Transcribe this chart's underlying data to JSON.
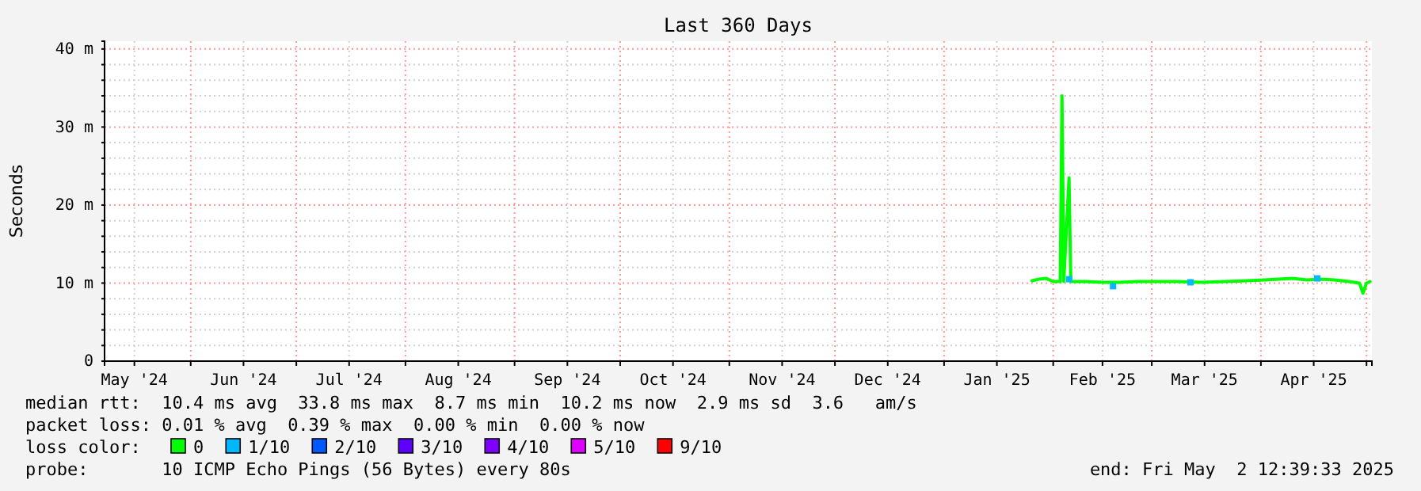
{
  "chart_data": {
    "type": "line",
    "title": "Last 360 Days",
    "ylabel": "Seconds",
    "xlim": [
      "2024-05-07T12:39",
      "2025-05-02T12:39"
    ],
    "xticks": [
      {
        "value": "2024-05-16",
        "label": "May '24"
      },
      {
        "value": "2024-06-01",
        "label": null
      },
      {
        "value": "2024-06-16",
        "label": "Jun '24"
      },
      {
        "value": "2024-07-01",
        "label": null
      },
      {
        "value": "2024-07-16",
        "label": "Jul '24"
      },
      {
        "value": "2024-08-01",
        "label": null
      },
      {
        "value": "2024-08-16",
        "label": "Aug '24"
      },
      {
        "value": "2024-09-01",
        "label": null
      },
      {
        "value": "2024-09-16",
        "label": "Sep '24"
      },
      {
        "value": "2024-10-01",
        "label": null
      },
      {
        "value": "2024-10-16",
        "label": "Oct '24"
      },
      {
        "value": "2024-11-01",
        "label": null
      },
      {
        "value": "2024-11-16",
        "label": "Nov '24"
      },
      {
        "value": "2024-12-01",
        "label": null
      },
      {
        "value": "2024-12-16",
        "label": "Dec '24"
      },
      {
        "value": "2025-01-01",
        "label": null
      },
      {
        "value": "2025-01-16",
        "label": "Jan '25"
      },
      {
        "value": "2025-02-01",
        "label": null
      },
      {
        "value": "2025-02-15",
        "label": "Feb '25"
      },
      {
        "value": "2025-03-01",
        "label": null
      },
      {
        "value": "2025-03-16",
        "label": "Mar '25"
      },
      {
        "value": "2025-04-01",
        "label": null
      },
      {
        "value": "2025-04-16",
        "label": "Apr '25"
      },
      {
        "value": "2025-05-01",
        "label": null
      }
    ],
    "ylim": [
      0,
      41
    ],
    "yticks": [
      0,
      {
        "value": 2,
        "label": null
      },
      {
        "value": 4,
        "label": null
      },
      {
        "value": 6,
        "label": null
      },
      {
        "value": 8,
        "label": null
      },
      {
        "value": 10,
        "label": "10 m"
      },
      {
        "value": 12,
        "label": null
      },
      {
        "value": 14,
        "label": null
      },
      {
        "value": 16,
        "label": null
      },
      {
        "value": 18,
        "label": null
      },
      {
        "value": 20,
        "label": "20 m"
      },
      {
        "value": 22,
        "label": null
      },
      {
        "value": 24,
        "label": null
      },
      {
        "value": 26,
        "label": null
      },
      {
        "value": 28,
        "label": null
      },
      {
        "value": 30,
        "label": "30 m"
      },
      {
        "value": 32,
        "label": null
      },
      {
        "value": 34,
        "label": null
      },
      {
        "value": 36,
        "label": null
      },
      {
        "value": 38,
        "label": null
      },
      {
        "value": 40,
        "label": "40 m"
      }
    ],
    "grid": true,
    "legend": "bottom",
    "legend_title": "loss color:",
    "series": [
      {
        "name": "0",
        "color": "#00ff00",
        "x": [
          "2025-01-26",
          "2025-01-28",
          "2025-01-30",
          "2025-02-01",
          "2025-02-03T00:00",
          "2025-02-03T12:00",
          "2025-02-04T00:00",
          "2025-02-05T12:00",
          "2025-02-06T00:00",
          "2025-02-06T12:00",
          "2025-02-10",
          "2025-02-15",
          "2025-02-20",
          "2025-02-25",
          "2025-03-01",
          "2025-03-08",
          "2025-03-15",
          "2025-03-22",
          "2025-03-28",
          "2025-04-02",
          "2025-04-06",
          "2025-04-10",
          "2025-04-14",
          "2025-04-18",
          "2025-04-22",
          "2025-04-26",
          "2025-04-29",
          "2025-04-30",
          "2025-05-01",
          "2025-05-02"
        ],
        "values": [
          10.3,
          10.5,
          10.6,
          10.2,
          10.2,
          34.0,
          10.2,
          23.5,
          10.2,
          10.2,
          10.2,
          10.1,
          10.1,
          10.2,
          10.2,
          10.2,
          10.1,
          10.2,
          10.3,
          10.4,
          10.5,
          10.6,
          10.4,
          10.5,
          10.4,
          10.2,
          10.0,
          8.7,
          10.0,
          10.2
        ]
      },
      {
        "name": "1/10",
        "color": "#00b8ff",
        "type": "scatter",
        "x": [
          "2025-02-05T12:00",
          "2025-02-18",
          "2025-03-12",
          "2025-04-17"
        ],
        "values": [
          10.5,
          9.6,
          10.1,
          10.6
        ]
      },
      {
        "name": "2/10",
        "color": "#0059ff",
        "type": "scatter"
      },
      {
        "name": "3/10",
        "color": "#5e00ff",
        "type": "scatter"
      },
      {
        "name": "4/10",
        "color": "#7e00ff",
        "type": "scatter"
      },
      {
        "name": "5/10",
        "color": "#dd00ff",
        "type": "scatter"
      },
      {
        "name": "9/10",
        "color": "#ff0000",
        "type": "scatter"
      }
    ],
    "annotations": [
      "median rtt:  10.4 ms avg  33.8 ms max  8.7 ms min  10.2 ms now  2.9 ms sd  3.6   am/s",
      "packet loss: 0.01 % avg  0.39 % max  0.00 % min  0.00 % now",
      "probe:       10 ICMP Echo Pings (56 Bytes) every 80s",
      "end: Fri May  2 12:39:33 2025"
    ]
  }
}
